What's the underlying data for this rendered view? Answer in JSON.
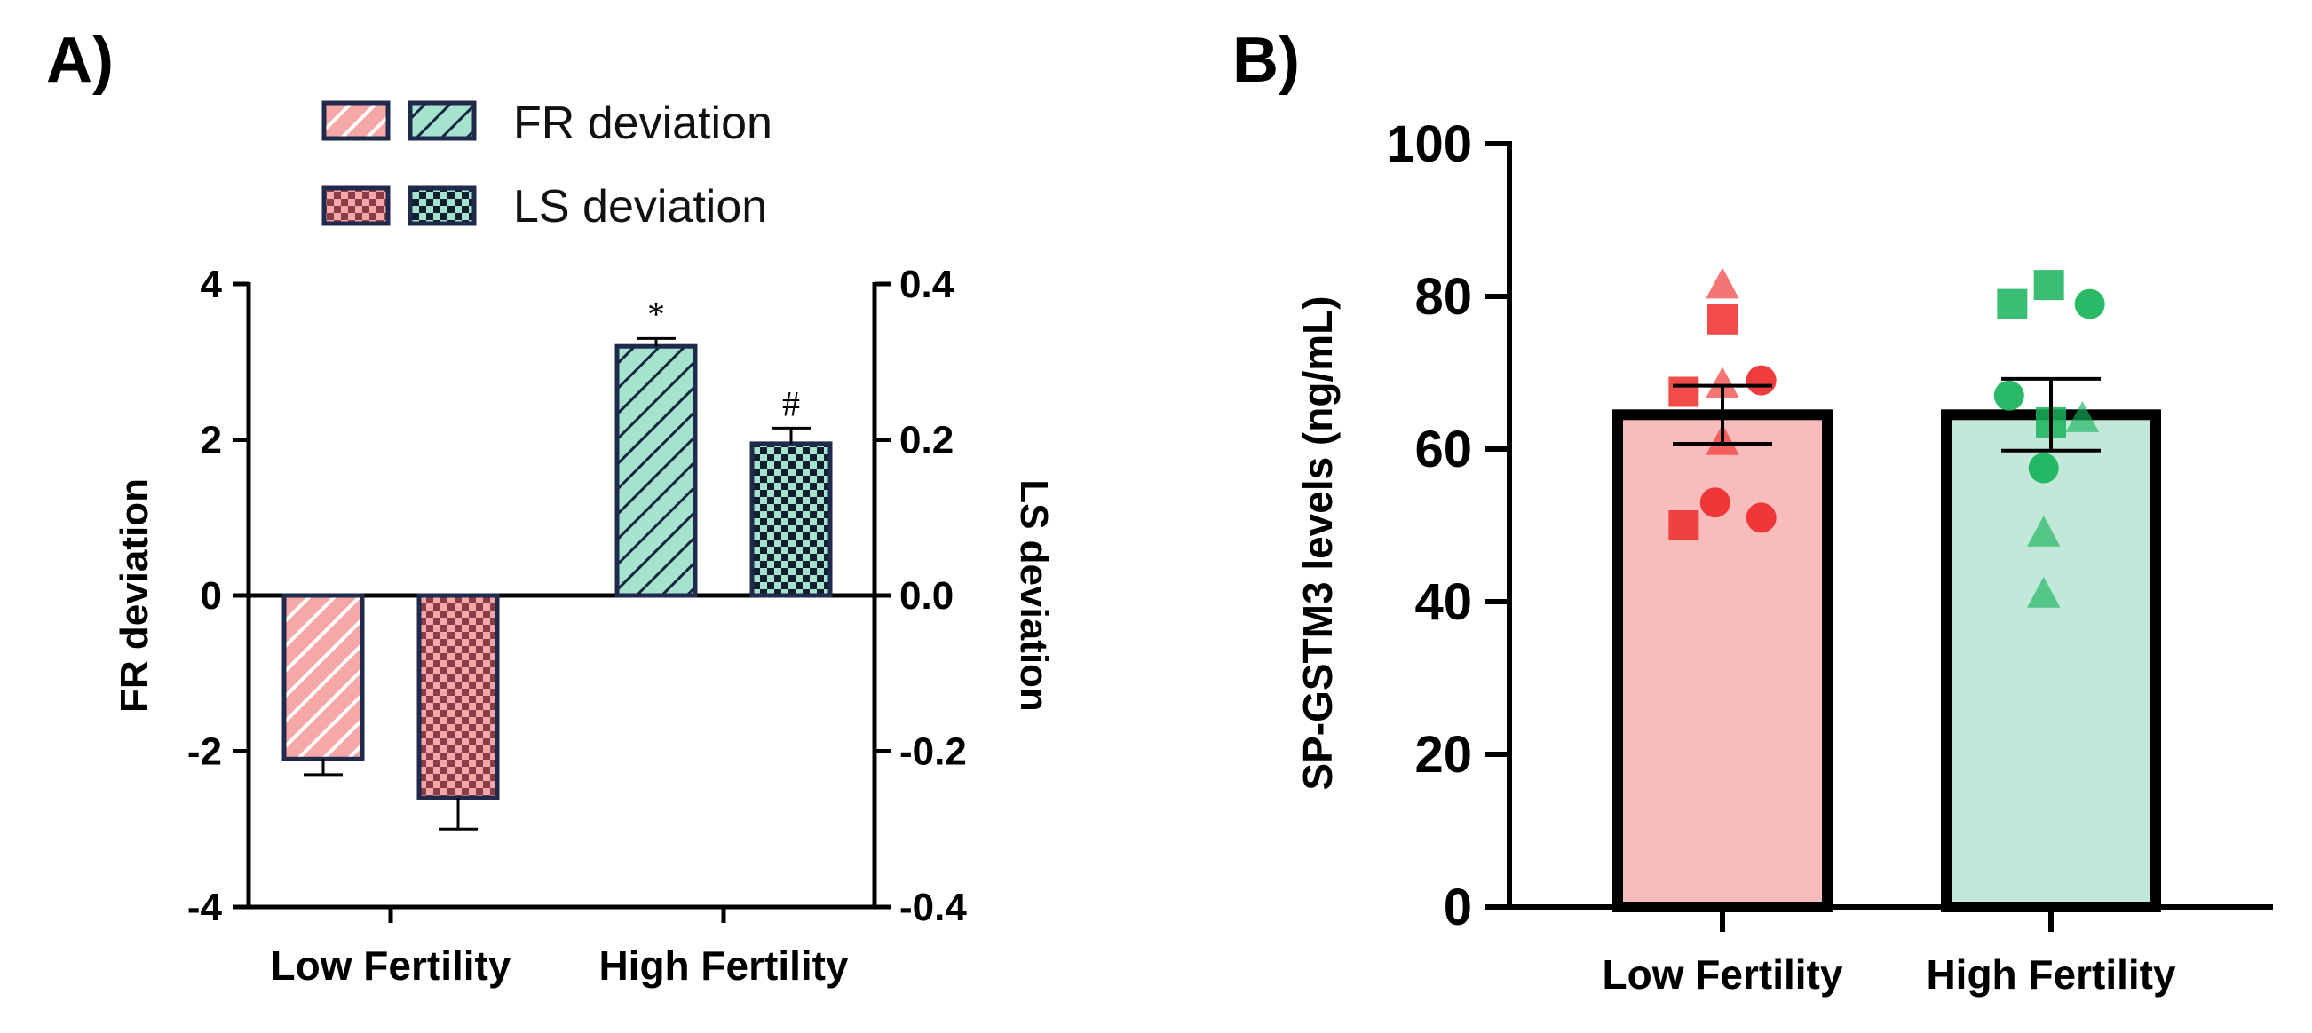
{
  "chart_data": [
    {
      "panel": "A)",
      "type": "bar",
      "categories": [
        "Low Fertility",
        "High Fertility"
      ],
      "y_left": {
        "label": "FR deviation",
        "lim": [
          -4,
          4
        ],
        "ticks": [
          "-4",
          "-2",
          "0",
          "2",
          "4"
        ]
      },
      "y_right": {
        "label": "LS deviation",
        "lim": [
          -0.4,
          0.4
        ],
        "ticks": [
          "-0.4",
          "-0.2",
          "0.0",
          "0.2",
          "0.4"
        ]
      },
      "legend": {
        "fr": "FR deviation",
        "ls": "LS deviation"
      },
      "series": [
        {
          "name": "FR deviation",
          "axis": "left",
          "values": [
            -2.1,
            3.2
          ],
          "errors": [
            0.2,
            0.1
          ],
          "annotations": [
            "",
            "*"
          ]
        },
        {
          "name": "LS deviation",
          "axis": "right",
          "values": [
            -0.26,
            0.195
          ],
          "errors": [
            0.04,
            0.02
          ],
          "annotations": [
            "",
            "#"
          ]
        }
      ],
      "colors": {
        "low": "#f6a7a7",
        "high": "#a6e3cf",
        "border": "#1f2a4d"
      }
    },
    {
      "panel": "B)",
      "type": "bar",
      "categories": [
        "Low Fertility",
        "High Fertility"
      ],
      "ylabel": "SP-GSTM3 levels  (ng/mL)",
      "ylim": [
        0,
        100
      ],
      "yticks": [
        "0",
        "20",
        "40",
        "60",
        "80",
        "100"
      ],
      "values": [
        64.5,
        64.5
      ],
      "errors": [
        3.8,
        4.7
      ],
      "colors": {
        "low": "#f8bcbc",
        "high": "#c2e8da",
        "low_points": "#ef2b2b",
        "high_points": "#18b35a"
      },
      "points": [
        [
          {
            "shape": "triangle",
            "y": 81.5,
            "dx": 0.0
          },
          {
            "shape": "square",
            "y": 77.0,
            "dx": 0.0
          },
          {
            "shape": "triangle",
            "y": 68.5,
            "dx": 0.0
          },
          {
            "shape": "square",
            "y": 67.5,
            "dx": -0.37
          },
          {
            "shape": "circle",
            "y": 69.0,
            "dx": 0.37
          },
          {
            "shape": "triangle",
            "y": 61.0,
            "dx": 0.0
          },
          {
            "shape": "circle",
            "y": 53.0,
            "dx": -0.07
          },
          {
            "shape": "square",
            "y": 50.0,
            "dx": -0.37
          },
          {
            "shape": "circle",
            "y": 51.0,
            "dx": 0.37
          }
        ],
        [
          {
            "shape": "square",
            "y": 79.0,
            "dx": -0.37
          },
          {
            "shape": "square",
            "y": 81.5,
            "dx": -0.02
          },
          {
            "shape": "circle",
            "y": 79.0,
            "dx": 0.37
          },
          {
            "shape": "circle",
            "y": 67.0,
            "dx": -0.4
          },
          {
            "shape": "square",
            "y": 63.5,
            "dx": 0.0
          },
          {
            "shape": "triangle",
            "y": 64.0,
            "dx": 0.3
          },
          {
            "shape": "circle",
            "y": 57.5,
            "dx": -0.07
          },
          {
            "shape": "triangle",
            "y": 49.0,
            "dx": -0.07
          },
          {
            "shape": "triangle",
            "y": 41.0,
            "dx": -0.07
          }
        ]
      ]
    }
  ]
}
